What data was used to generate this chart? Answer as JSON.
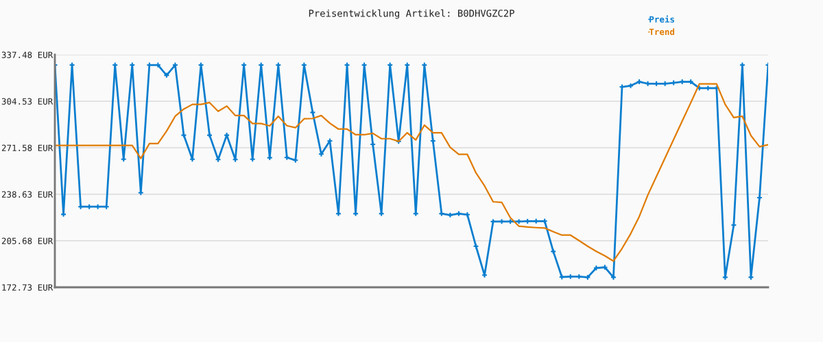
{
  "chart_data": {
    "type": "line",
    "title": "Preisentwicklung Artikel: B0DHVGZC2P",
    "categories": [
      null,
      null,
      null,
      null,
      null,
      null,
      null,
      null,
      null,
      null,
      null,
      null,
      null,
      null,
      null,
      null,
      null,
      null,
      null,
      null,
      null,
      null,
      null,
      null,
      null,
      null,
      null,
      null,
      null,
      null,
      null,
      null,
      null,
      null,
      null,
      null,
      null,
      null,
      null,
      null,
      null,
      null,
      null,
      null,
      null,
      null,
      null,
      null,
      null,
      null,
      null,
      null,
      null,
      null,
      null,
      null,
      null,
      null,
      null,
      null,
      null,
      null,
      null,
      null,
      null,
      null,
      null,
      null,
      null,
      null,
      null,
      null,
      null,
      null,
      null,
      null,
      null,
      null,
      null,
      null,
      null,
      null,
      null,
      null
    ],
    "series": [
      {
        "name": "Preis",
        "color": "#0a7ecf",
        "marker": "cross",
        "values": [
          330.2,
          224.4,
          330.2,
          229.8,
          229.8,
          229.8,
          229.8,
          330.2,
          263.5,
          330.2,
          239.7,
          330.2,
          330.2,
          322.9,
          330.2,
          280.5,
          263.5,
          330.2,
          280.5,
          263.2,
          280.5,
          263.2,
          330.2,
          263.5,
          330.2,
          264.5,
          330.2,
          264.7,
          262.7,
          330.2,
          296.6,
          267.1,
          276.4,
          224.9,
          330.2,
          224.9,
          330.2,
          274.0,
          224.9,
          330.2,
          276.1,
          330.2,
          224.9,
          330.2,
          276.4,
          224.9,
          223.9,
          224.9,
          224.2,
          201.8,
          181.3,
          219.3,
          219.3,
          219.3,
          219.3,
          219.5,
          219.6,
          219.6,
          198.1,
          180.0,
          180.3,
          180.3,
          179.8,
          186.4,
          186.9,
          179.8,
          314.7,
          315.5,
          318.3,
          317.0,
          317.0,
          317.0,
          317.6,
          318.3,
          318.3,
          313.8,
          313.8,
          313.8,
          179.8,
          216.8,
          330.2,
          179.8,
          236.2,
          330.2
        ]
      },
      {
        "name": "Trend",
        "color": "#e07b00",
        "marker": "none",
        "values": [
          273.2,
          273.2,
          273.2,
          273.2,
          273.2,
          273.2,
          273.2,
          273.2,
          273.2,
          273.2,
          264.0,
          274.5,
          274.5,
          283.4,
          293.9,
          299.0,
          302.3,
          302.3,
          303.6,
          297.4,
          301.1,
          294.4,
          294.4,
          288.7,
          288.7,
          287.1,
          293.9,
          287.2,
          285.8,
          292.1,
          292.3,
          294.4,
          289.0,
          284.8,
          284.8,
          280.8,
          280.8,
          281.8,
          278.0,
          278.0,
          276.1,
          282.2,
          277.1,
          287.6,
          282.2,
          282.2,
          271.9,
          266.9,
          266.9,
          253.8,
          244.6,
          233.3,
          232.9,
          222.0,
          216.0,
          215.4,
          215.0,
          214.7,
          212.1,
          209.7,
          209.7,
          205.8,
          201.8,
          198.2,
          195.0,
          191.3,
          200.2,
          210.6,
          222.8,
          238.1,
          251.2,
          264.3,
          277.4,
          290.5,
          303.5,
          316.8,
          316.8,
          316.8,
          302.3,
          293.0,
          293.9,
          280.2,
          272.4,
          273.7
        ]
      }
    ],
    "ylim": [
      172.73,
      337.48
    ],
    "yticks": [
      {
        "value": 172.73,
        "label": "172.73 EUR"
      },
      {
        "value": 205.68,
        "label": "205.68 EUR"
      },
      {
        "value": 238.63,
        "label": "238.63 EUR"
      },
      {
        "value": 271.58,
        "label": "271.58 EUR"
      },
      {
        "value": 304.53,
        "label": "304.53 EUR"
      },
      {
        "value": 337.48,
        "label": "337.48 EUR"
      }
    ],
    "grid": "y",
    "legend": "top right",
    "line_style": "solid"
  }
}
